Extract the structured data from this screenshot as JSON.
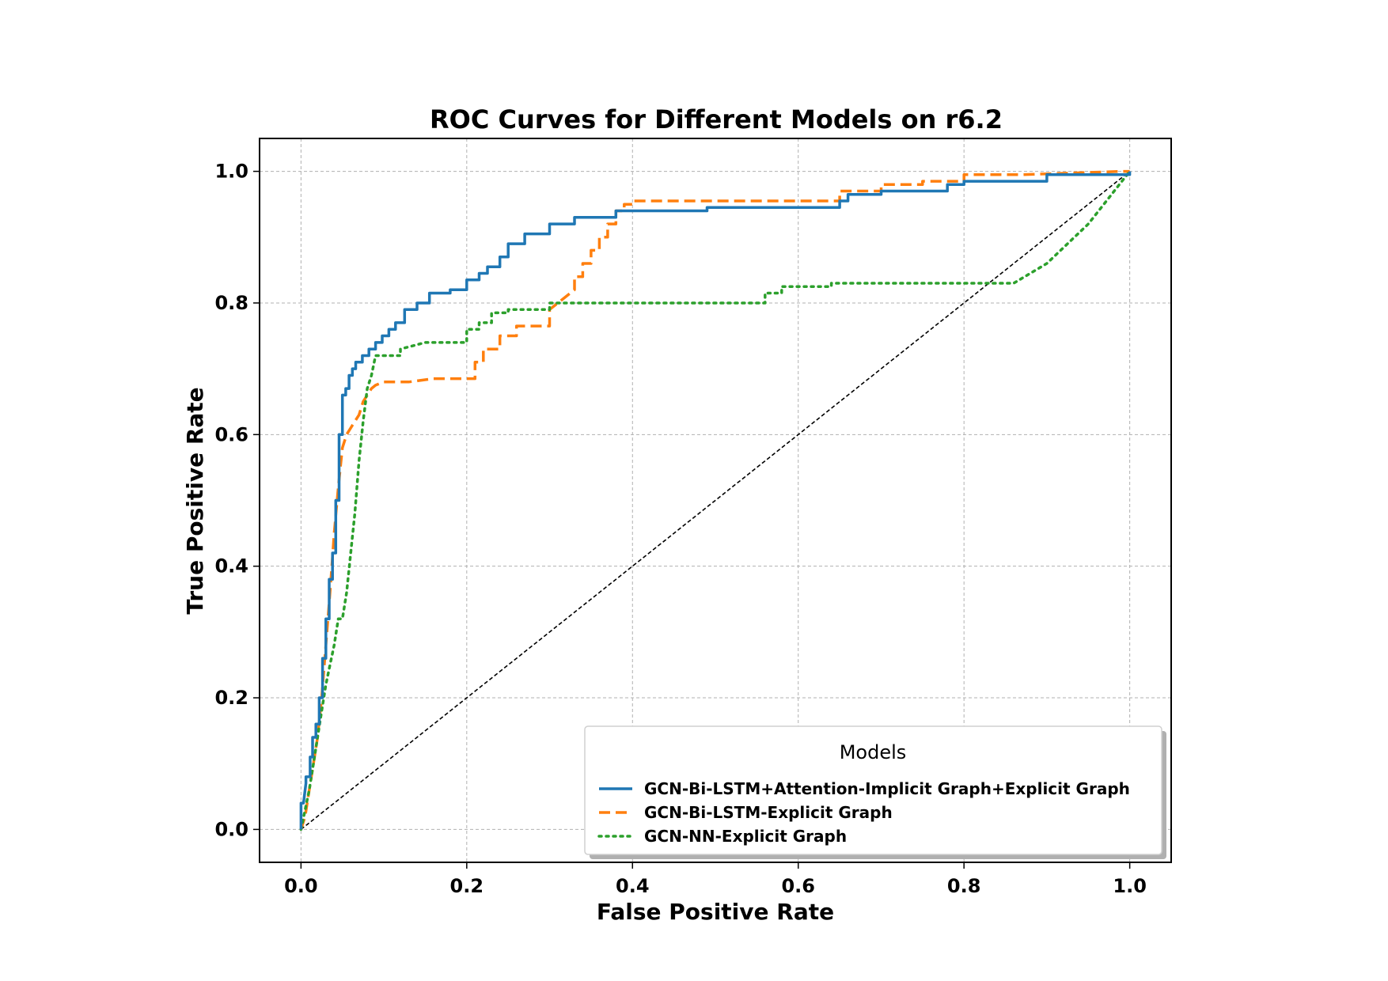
{
  "chart_data": {
    "type": "line",
    "title": "ROC Curves for Different Models on r6.2",
    "xlabel": "False Positive Rate",
    "ylabel": "True Positive Rate",
    "xlim": [
      -0.05,
      1.05
    ],
    "ylim": [
      -0.05,
      1.05
    ],
    "grid": true,
    "x_ticks": [
      0.0,
      0.2,
      0.4,
      0.6,
      0.8,
      1.0
    ],
    "y_ticks": [
      0.0,
      0.2,
      0.4,
      0.6,
      0.8,
      1.0
    ],
    "x_tick_labels": [
      "0.0",
      "0.2",
      "0.4",
      "0.6",
      "0.8",
      "1.0"
    ],
    "y_tick_labels": [
      "0.0",
      "0.2",
      "0.4",
      "0.6",
      "0.8",
      "1.0"
    ],
    "legend": {
      "title": "Models",
      "position": "lower-right"
    },
    "reference_line": {
      "x": [
        0,
        1
      ],
      "y": [
        0,
        1
      ],
      "color": "#000000",
      "style": "dashed"
    },
    "series": [
      {
        "name": "GCN-Bi-LSTM+Attention-Implicit Graph+Explicit Graph",
        "color": "#1f77b4",
        "style": "solid",
        "x": [
          0.0,
          0.0,
          0.003,
          0.006,
          0.006,
          0.011,
          0.011,
          0.014,
          0.014,
          0.018,
          0.018,
          0.022,
          0.022,
          0.026,
          0.026,
          0.03,
          0.03,
          0.034,
          0.034,
          0.038,
          0.038,
          0.042,
          0.042,
          0.046,
          0.046,
          0.05,
          0.05,
          0.054,
          0.054,
          0.058,
          0.058,
          0.062,
          0.062,
          0.066,
          0.066,
          0.074,
          0.074,
          0.082,
          0.082,
          0.09,
          0.09,
          0.098,
          0.098,
          0.106,
          0.106,
          0.114,
          0.114,
          0.125,
          0.125,
          0.14,
          0.14,
          0.155,
          0.155,
          0.18,
          0.18,
          0.2,
          0.2,
          0.215,
          0.215,
          0.225,
          0.225,
          0.24,
          0.24,
          0.25,
          0.25,
          0.27,
          0.27,
          0.3,
          0.3,
          0.33,
          0.33,
          0.38,
          0.38,
          0.49,
          0.49,
          0.65,
          0.65,
          0.66,
          0.66,
          0.7,
          0.7,
          0.78,
          0.78,
          0.8,
          0.8,
          0.9,
          0.9,
          1.0,
          1.0
        ],
        "y": [
          0.0,
          0.04,
          0.04,
          0.07,
          0.08,
          0.08,
          0.11,
          0.11,
          0.14,
          0.14,
          0.16,
          0.16,
          0.2,
          0.2,
          0.26,
          0.26,
          0.32,
          0.32,
          0.38,
          0.38,
          0.42,
          0.42,
          0.5,
          0.5,
          0.6,
          0.6,
          0.66,
          0.66,
          0.67,
          0.67,
          0.69,
          0.69,
          0.7,
          0.7,
          0.71,
          0.71,
          0.72,
          0.72,
          0.73,
          0.73,
          0.74,
          0.74,
          0.75,
          0.75,
          0.76,
          0.76,
          0.77,
          0.77,
          0.79,
          0.79,
          0.8,
          0.8,
          0.815,
          0.815,
          0.82,
          0.82,
          0.835,
          0.835,
          0.845,
          0.845,
          0.855,
          0.855,
          0.87,
          0.87,
          0.89,
          0.89,
          0.905,
          0.905,
          0.92,
          0.92,
          0.93,
          0.93,
          0.94,
          0.94,
          0.945,
          0.945,
          0.955,
          0.955,
          0.965,
          0.965,
          0.97,
          0.97,
          0.98,
          0.98,
          0.985,
          0.985,
          0.995,
          0.995,
          1.0
        ]
      },
      {
        "name": "GCN-Bi-LSTM-Explicit Graph",
        "color": "#ff7f0e",
        "style": "dashed",
        "x": [
          0.0,
          0.005,
          0.01,
          0.015,
          0.02,
          0.025,
          0.03,
          0.035,
          0.04,
          0.045,
          0.05,
          0.055,
          0.06,
          0.065,
          0.07,
          0.075,
          0.08,
          0.085,
          0.09,
          0.1,
          0.13,
          0.16,
          0.21,
          0.21,
          0.22,
          0.22,
          0.24,
          0.24,
          0.26,
          0.26,
          0.3,
          0.3,
          0.31,
          0.32,
          0.33,
          0.33,
          0.34,
          0.34,
          0.35,
          0.35,
          0.36,
          0.36,
          0.37,
          0.37,
          0.38,
          0.38,
          0.39,
          0.39,
          0.4,
          0.4,
          0.55,
          0.65,
          0.65,
          0.7,
          0.7,
          0.75,
          0.75,
          0.8,
          0.8,
          0.87,
          0.99,
          1.0
        ],
        "y": [
          0.0,
          0.02,
          0.06,
          0.1,
          0.14,
          0.2,
          0.28,
          0.36,
          0.45,
          0.52,
          0.58,
          0.6,
          0.61,
          0.62,
          0.63,
          0.65,
          0.66,
          0.67,
          0.675,
          0.68,
          0.68,
          0.685,
          0.685,
          0.71,
          0.71,
          0.73,
          0.73,
          0.75,
          0.75,
          0.765,
          0.765,
          0.79,
          0.8,
          0.81,
          0.82,
          0.84,
          0.84,
          0.86,
          0.86,
          0.88,
          0.88,
          0.9,
          0.9,
          0.92,
          0.92,
          0.94,
          0.94,
          0.95,
          0.95,
          0.955,
          0.955,
          0.955,
          0.97,
          0.97,
          0.98,
          0.98,
          0.985,
          0.985,
          0.995,
          0.995,
          1.0,
          1.0
        ]
      },
      {
        "name": "GCN-NN-Explicit Graph",
        "color": "#2ca02c",
        "style": "dotted",
        "x": [
          0.0,
          0.005,
          0.01,
          0.015,
          0.02,
          0.025,
          0.03,
          0.035,
          0.04,
          0.045,
          0.05,
          0.055,
          0.06,
          0.065,
          0.07,
          0.075,
          0.08,
          0.085,
          0.09,
          0.1,
          0.12,
          0.12,
          0.15,
          0.2,
          0.2,
          0.215,
          0.215,
          0.23,
          0.23,
          0.25,
          0.25,
          0.3,
          0.3,
          0.32,
          0.32,
          0.56,
          0.56,
          0.58,
          0.58,
          0.64,
          0.64,
          0.86,
          0.9,
          0.95,
          1.0
        ],
        "y": [
          0.0,
          0.03,
          0.06,
          0.1,
          0.14,
          0.18,
          0.22,
          0.25,
          0.28,
          0.32,
          0.32,
          0.36,
          0.42,
          0.48,
          0.56,
          0.62,
          0.67,
          0.69,
          0.72,
          0.72,
          0.72,
          0.73,
          0.74,
          0.74,
          0.76,
          0.76,
          0.77,
          0.77,
          0.785,
          0.785,
          0.79,
          0.79,
          0.8,
          0.8,
          0.8,
          0.8,
          0.815,
          0.815,
          0.825,
          0.825,
          0.83,
          0.83,
          0.86,
          0.92,
          1.0
        ]
      }
    ]
  }
}
